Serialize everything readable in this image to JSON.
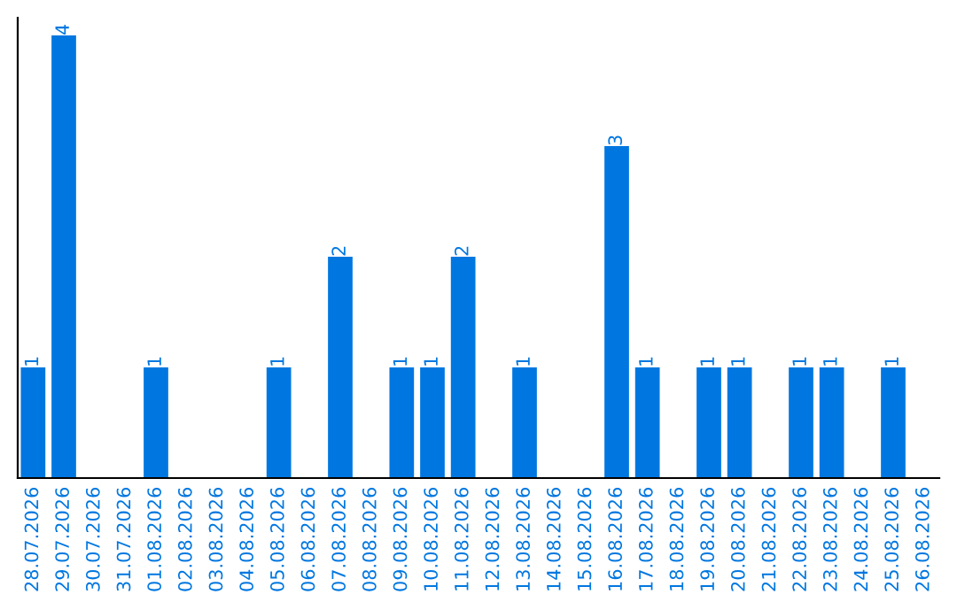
{
  "chart_data": {
    "type": "bar",
    "categories": [
      "28.07.2026",
      "29.07.2026",
      "30.07.2026",
      "31.07.2026",
      "01.08.2026",
      "02.08.2026",
      "03.08.2026",
      "04.08.2026",
      "05.08.2026",
      "06.08.2026",
      "07.08.2026",
      "08.08.2026",
      "09.08.2026",
      "10.08.2026",
      "11.08.2026",
      "12.08.2026",
      "13.08.2026",
      "14.08.2026",
      "15.08.2026",
      "16.08.2026",
      "17.08.2026",
      "18.08.2026",
      "19.08.2026",
      "20.08.2026",
      "21.08.2026",
      "22.08.2026",
      "23.08.2026",
      "24.08.2026",
      "25.08.2026",
      "26.08.2026"
    ],
    "values": [
      1,
      4,
      0,
      0,
      1,
      0,
      0,
      0,
      1,
      0,
      2,
      0,
      1,
      1,
      2,
      0,
      1,
      0,
      0,
      3,
      1,
      0,
      1,
      1,
      0,
      1,
      1,
      0,
      1,
      0
    ],
    "value_labels": [
      "1",
      "4",
      null,
      null,
      "1",
      null,
      null,
      null,
      "1",
      null,
      "2",
      null,
      "1",
      "1",
      "2",
      null,
      "1",
      null,
      null,
      "3",
      "1",
      null,
      "1",
      "1",
      null,
      "1",
      "1",
      null,
      "1",
      null
    ],
    "color": "#0077e0",
    "ylim": [
      0,
      4.16
    ],
    "tick_labels": "x",
    "grid": false,
    "legend": false
  }
}
